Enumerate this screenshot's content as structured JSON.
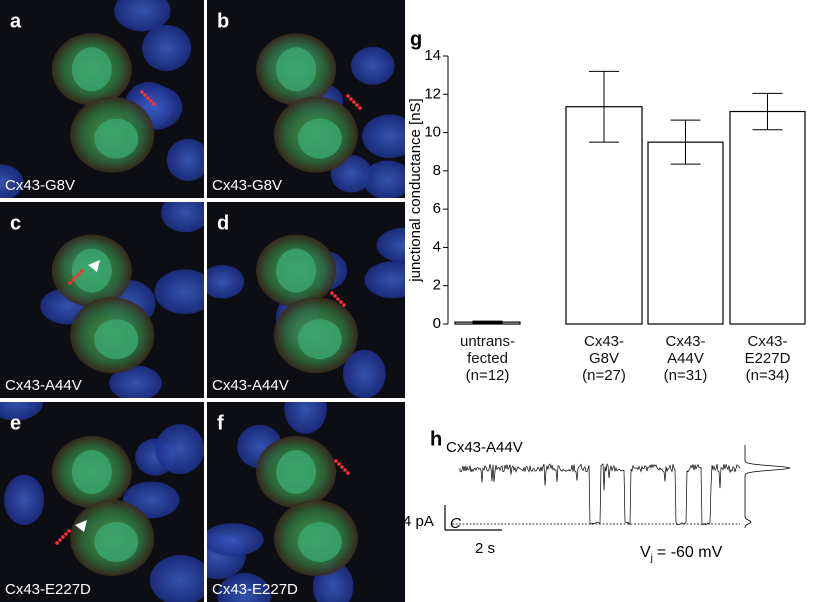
{
  "panels": [
    {
      "letter": "a",
      "label": "Cx43-G8V"
    },
    {
      "letter": "b",
      "label": "Cx43-G8V"
    },
    {
      "letter": "c",
      "label": "Cx43-A44V"
    },
    {
      "letter": "d",
      "label": "Cx43-A44V"
    },
    {
      "letter": "e",
      "label": "Cx43-E227D"
    },
    {
      "letter": "f",
      "label": "Cx43-E227D"
    }
  ],
  "chart_data": {
    "type": "bar",
    "panel": "g",
    "y_label": "junctional conductance [nS]",
    "categories": [
      "untrans-\nfected\n(n=12)",
      "Cx43-\nG8V\n(n=27)",
      "Cx43-\nA44V\n(n=31)",
      "Cx43-\nE227D\n(n=34)"
    ],
    "values": [
      0.1,
      11.35,
      9.5,
      11.1
    ],
    "errors": [
      0.05,
      1.85,
      1.15,
      0.95
    ],
    "color": "#ffffff",
    "ylim": [
      0,
      14
    ],
    "yticks": [
      0,
      2,
      4,
      6,
      8,
      10,
      12,
      14
    ]
  },
  "trace": {
    "panel": "h",
    "title": "Cx43-A44V",
    "current_scale": "4 pA",
    "time_scale": "2 s",
    "closed_label": "C",
    "voltage_symbol": "V",
    "voltage_subscript": "j",
    "voltage_value": "=  -60 mV"
  }
}
